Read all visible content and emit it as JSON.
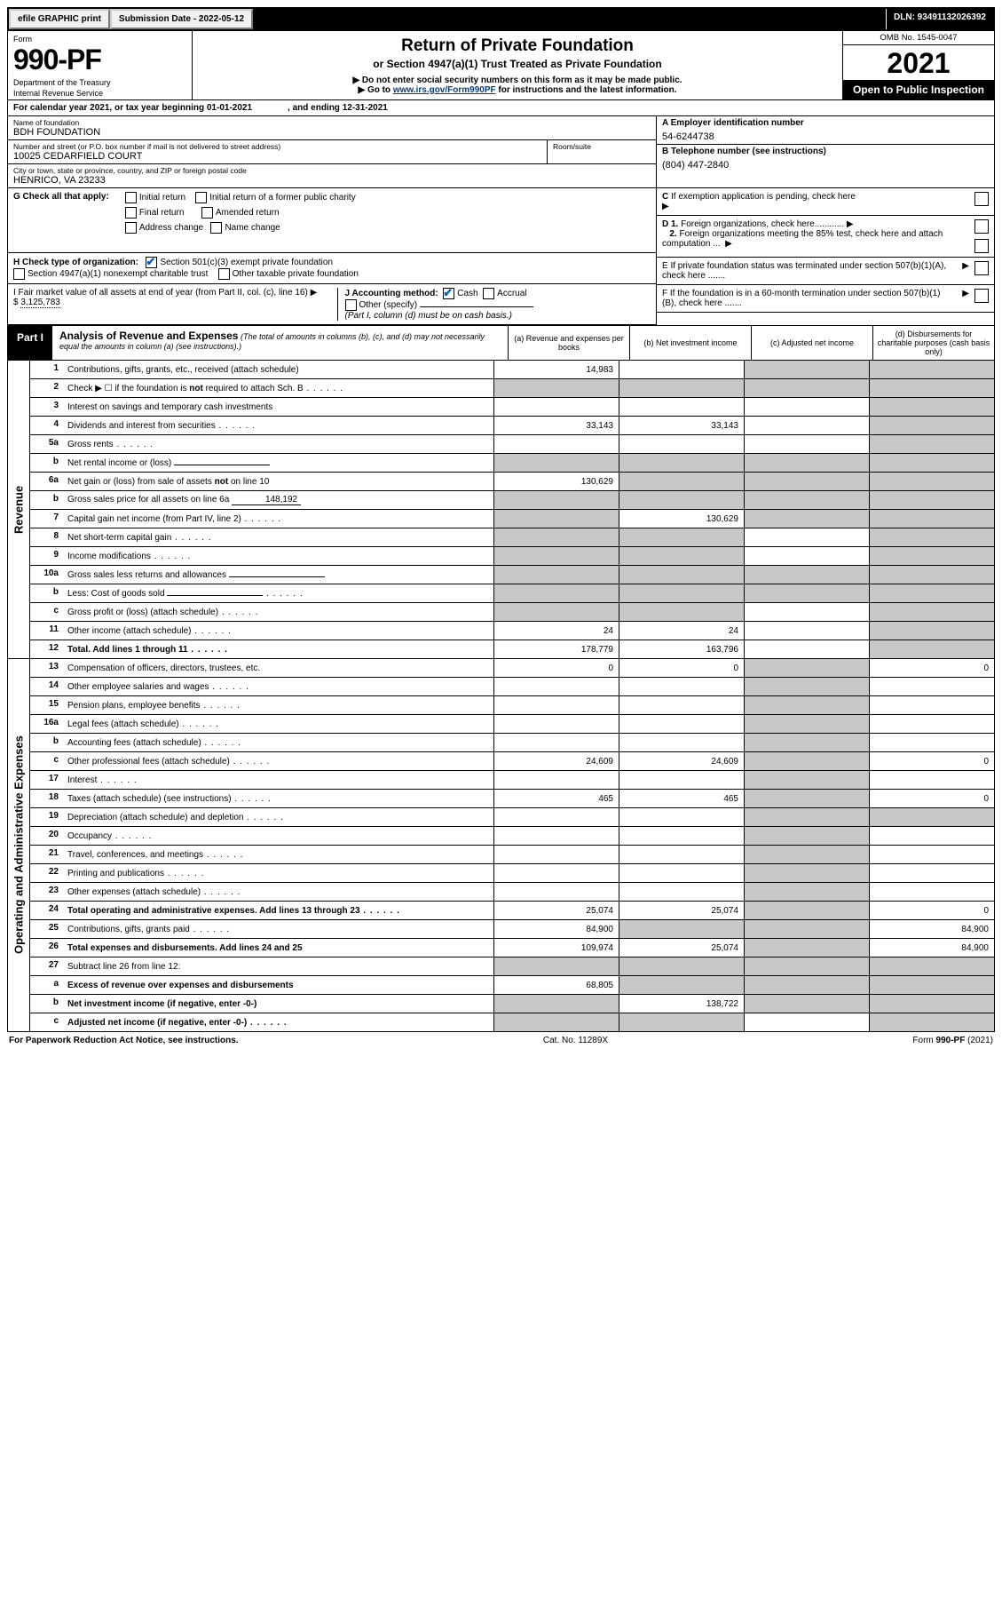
{
  "topbar": {
    "efile": "efile GRAPHIC print",
    "subdate": "Submission Date - 2022-05-12",
    "dln": "DLN: 93491132026392"
  },
  "header": {
    "form": "Form",
    "formNum": "990-PF",
    "dept": "Department of the Treasury",
    "irs": "Internal Revenue Service",
    "title": "Return of Private Foundation",
    "subtitle": "or Section 4947(a)(1) Trust Treated as Private Foundation",
    "instr1": "▶ Do not enter social security numbers on this form as it may be made public.",
    "instr2": "▶ Go to www.irs.gov/Form990PF for instructions and the latest information.",
    "link": "www.irs.gov/Form990PF",
    "omb": "OMB No. 1545-0047",
    "year": "2021",
    "open": "Open to Public Inspection"
  },
  "calendar": {
    "text1": "For calendar year 2021, or tax year beginning 01-01-2021",
    "text2": ", and ending 12-31-2021"
  },
  "id": {
    "nameLbl": "Name of foundation",
    "name": "BDH FOUNDATION",
    "addrLbl": "Number and street (or P.O. box number if mail is not delivered to street address)",
    "addr": "10025 CEDARFIELD COURT",
    "roomLbl": "Room/suite",
    "cityLbl": "City or town, state or province, country, and ZIP or foreign postal code",
    "city": "HENRICO, VA  23233",
    "aLbl": "A Employer identification number",
    "a": "54-6244738",
    "bLbl": "B Telephone number (see instructions)",
    "b": "(804) 447-2840",
    "cLbl": "C If exemption application is pending, check here",
    "d1": "D 1. Foreign organizations, check here",
    "d2": "2. Foreign organizations meeting the 85% test, check here and attach computation ...",
    "e": "E  If private foundation status was terminated under section 507(b)(1)(A), check here .......",
    "f": "F  If the foundation is in a 60-month termination under section 507(b)(1)(B), check here ......."
  },
  "g": {
    "label": "G Check all that apply:",
    "opts": [
      "Initial return",
      "Initial return of a former public charity",
      "Final return",
      "Amended return",
      "Address change",
      "Name change"
    ]
  },
  "h": {
    "label": "H Check type of organization:",
    "opt1": "Section 501(c)(3) exempt private foundation",
    "opt2": "Section 4947(a)(1) nonexempt charitable trust",
    "opt3": "Other taxable private foundation"
  },
  "i": {
    "label": "I Fair market value of all assets at end of year (from Part II, col. (c), line 16)",
    "arrow": "▶ $",
    "val": "3,125,783"
  },
  "j": {
    "label": "J Accounting method:",
    "cash": "Cash",
    "accrual": "Accrual",
    "other": "Other (specify)",
    "note": "(Part I, column (d) must be on cash basis.)"
  },
  "part1": {
    "label": "Part I",
    "title": "Analysis of Revenue and Expenses",
    "desc": "(The total of amounts in columns (b), (c), and (d) may not necessarily equal the amounts in column (a) (see instructions).)",
    "colA": "(a)   Revenue and expenses per books",
    "colB": "(b)   Net investment income",
    "colC": "(c)   Adjusted net income",
    "colD": "(d)   Disbursements for charitable purposes (cash basis only)"
  },
  "sidebarRevenue": "Revenue",
  "sidebarExpenses": "Operating and Administrative Expenses",
  "rowsRevenue": [
    {
      "n": "1",
      "label": "Contributions, gifts, grants, etc., received (attach schedule)",
      "a": "14,983",
      "b": "",
      "c": "shade",
      "d": "shade"
    },
    {
      "n": "2",
      "label": "Check ▶ ☐ if the foundation is not required to attach Sch. B",
      "a": "shade",
      "b": "shade",
      "c": "shade",
      "d": "shade",
      "dots": true
    },
    {
      "n": "3",
      "label": "Interest on savings and temporary cash investments",
      "a": "",
      "b": "",
      "c": "",
      "d": "shade"
    },
    {
      "n": "4",
      "label": "Dividends and interest from securities",
      "a": "33,143",
      "b": "33,143",
      "c": "",
      "d": "shade",
      "dots": true
    },
    {
      "n": "5a",
      "label": "Gross rents",
      "a": "",
      "b": "",
      "c": "",
      "d": "shade",
      "dots": true
    },
    {
      "n": "b",
      "label": "Net rental income or (loss)",
      "a": "shade",
      "b": "shade",
      "c": "shade",
      "d": "shade",
      "underline": true
    },
    {
      "n": "6a",
      "label": "Net gain or (loss) from sale of assets not on line 10",
      "a": "130,629",
      "b": "shade",
      "c": "shade",
      "d": "shade"
    },
    {
      "n": "b",
      "label": "Gross sales price for all assets on line 6a",
      "a": "shade",
      "b": "shade",
      "c": "shade",
      "d": "shade",
      "inlineVal": "148,192"
    },
    {
      "n": "7",
      "label": "Capital gain net income (from Part IV, line 2)",
      "a": "shade",
      "b": "130,629",
      "c": "shade",
      "d": "shade",
      "dots": true
    },
    {
      "n": "8",
      "label": "Net short-term capital gain",
      "a": "shade",
      "b": "shade",
      "c": "",
      "d": "shade",
      "dots": true
    },
    {
      "n": "9",
      "label": "Income modifications",
      "a": "shade",
      "b": "shade",
      "c": "",
      "d": "shade",
      "dots": true
    },
    {
      "n": "10a",
      "label": "Gross sales less returns and allowances",
      "a": "shade",
      "b": "shade",
      "c": "shade",
      "d": "shade",
      "underline": true
    },
    {
      "n": "b",
      "label": "Less: Cost of goods sold",
      "a": "shade",
      "b": "shade",
      "c": "shade",
      "d": "shade",
      "underline": true,
      "dots": true
    },
    {
      "n": "c",
      "label": "Gross profit or (loss) (attach schedule)",
      "a": "shade",
      "b": "shade",
      "c": "",
      "d": "shade",
      "dots": true
    },
    {
      "n": "11",
      "label": "Other income (attach schedule)",
      "a": "24",
      "b": "24",
      "c": "",
      "d": "shade",
      "dots": true
    },
    {
      "n": "12",
      "label": "Total. Add lines 1 through 11",
      "a": "178,779",
      "b": "163,796",
      "c": "",
      "d": "shade",
      "bold": true,
      "dots": true
    }
  ],
  "rowsExpenses": [
    {
      "n": "13",
      "label": "Compensation of officers, directors, trustees, etc.",
      "a": "0",
      "b": "0",
      "c": "shade",
      "d": "0"
    },
    {
      "n": "14",
      "label": "Other employee salaries and wages",
      "a": "",
      "b": "",
      "c": "shade",
      "d": "",
      "dots": true
    },
    {
      "n": "15",
      "label": "Pension plans, employee benefits",
      "a": "",
      "b": "",
      "c": "shade",
      "d": "",
      "dots": true
    },
    {
      "n": "16a",
      "label": "Legal fees (attach schedule)",
      "a": "",
      "b": "",
      "c": "shade",
      "d": "",
      "dots": true
    },
    {
      "n": "b",
      "label": "Accounting fees (attach schedule)",
      "a": "",
      "b": "",
      "c": "shade",
      "d": "",
      "dots": true
    },
    {
      "n": "c",
      "label": "Other professional fees (attach schedule)",
      "a": "24,609",
      "b": "24,609",
      "c": "shade",
      "d": "0",
      "dots": true
    },
    {
      "n": "17",
      "label": "Interest",
      "a": "",
      "b": "",
      "c": "shade",
      "d": "",
      "dots": true
    },
    {
      "n": "18",
      "label": "Taxes (attach schedule) (see instructions)",
      "a": "465",
      "b": "465",
      "c": "shade",
      "d": "0",
      "dots": true
    },
    {
      "n": "19",
      "label": "Depreciation (attach schedule) and depletion",
      "a": "",
      "b": "",
      "c": "shade",
      "d": "shade",
      "dots": true
    },
    {
      "n": "20",
      "label": "Occupancy",
      "a": "",
      "b": "",
      "c": "shade",
      "d": "",
      "dots": true
    },
    {
      "n": "21",
      "label": "Travel, conferences, and meetings",
      "a": "",
      "b": "",
      "c": "shade",
      "d": "",
      "dots": true
    },
    {
      "n": "22",
      "label": "Printing and publications",
      "a": "",
      "b": "",
      "c": "shade",
      "d": "",
      "dots": true
    },
    {
      "n": "23",
      "label": "Other expenses (attach schedule)",
      "a": "",
      "b": "",
      "c": "shade",
      "d": "",
      "dots": true
    },
    {
      "n": "24",
      "label": "Total operating and administrative expenses. Add lines 13 through 23",
      "a": "25,074",
      "b": "25,074",
      "c": "shade",
      "d": "0",
      "bold": true,
      "dots": true
    },
    {
      "n": "25",
      "label": "Contributions, gifts, grants paid",
      "a": "84,900",
      "b": "shade",
      "c": "shade",
      "d": "84,900",
      "dots": true
    },
    {
      "n": "26",
      "label": "Total expenses and disbursements. Add lines 24 and 25",
      "a": "109,974",
      "b": "25,074",
      "c": "shade",
      "d": "84,900",
      "bold": true
    },
    {
      "n": "27",
      "label": "Subtract line 26 from line 12:",
      "a": "shade",
      "b": "shade",
      "c": "shade",
      "d": "shade"
    },
    {
      "n": "a",
      "label": "Excess of revenue over expenses and disbursements",
      "a": "68,805",
      "b": "shade",
      "c": "shade",
      "d": "shade",
      "bold": true
    },
    {
      "n": "b",
      "label": "Net investment income (if negative, enter -0-)",
      "a": "shade",
      "b": "138,722",
      "c": "shade",
      "d": "shade",
      "bold": true
    },
    {
      "n": "c",
      "label": "Adjusted net income (if negative, enter -0-)",
      "a": "shade",
      "b": "shade",
      "c": "",
      "d": "shade",
      "bold": true,
      "dots": true
    }
  ],
  "footer": {
    "left": "For Paperwork Reduction Act Notice, see instructions.",
    "mid": "Cat. No. 11289X",
    "right": "Form 990-PF (2021)"
  },
  "colors": {
    "shade": "#c8c8c8",
    "link": "#004080",
    "check": "#0060c0"
  }
}
